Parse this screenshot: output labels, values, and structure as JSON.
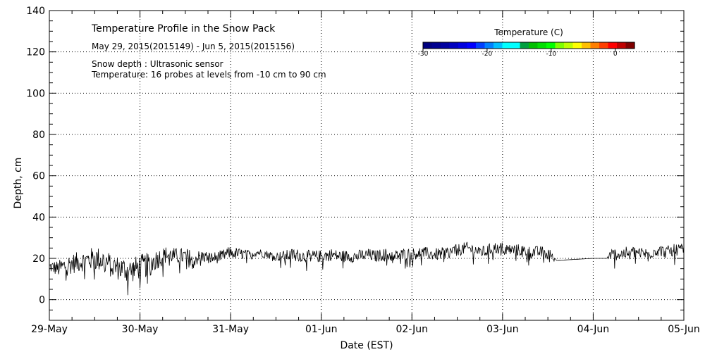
{
  "chart_data": {
    "type": "line",
    "annotations": {
      "title": "Temperature Profile in the Snow Pack",
      "date_range": "May 29, 2015(2015149) - Jun  5, 2015(2015156)",
      "snow_depth_note": "Snow depth : Ultrasonic sensor",
      "temperature_note": "Temperature: 16 probes at levels from -10 cm to 90 cm"
    },
    "xlabel": "Date (EST)",
    "ylabel": "Depth, cm",
    "ylim": [
      -10,
      140
    ],
    "xlim": [
      0,
      7
    ],
    "x_ticks": [
      {
        "value": 0,
        "label": "29-May"
      },
      {
        "value": 1,
        "label": "30-May"
      },
      {
        "value": 2,
        "label": "31-May"
      },
      {
        "value": 3,
        "label": "01-Jun"
      },
      {
        "value": 4,
        "label": "02-Jun"
      },
      {
        "value": 5,
        "label": "03-Jun"
      },
      {
        "value": 6,
        "label": "04-Jun"
      },
      {
        "value": 7,
        "label": "05-Jun"
      }
    ],
    "y_ticks": [
      0,
      20,
      40,
      60,
      80,
      100,
      120,
      140
    ],
    "grid": true,
    "colorbar": {
      "title": "Temperature (C)",
      "range": [
        -30,
        3
      ],
      "tick_values": [
        -30,
        -20,
        -10,
        0
      ],
      "tick_labels": [
        "-30",
        "-20",
        "-10",
        "0"
      ],
      "colors": [
        "#00007f",
        "#00008f",
        "#00009f",
        "#0000bf",
        "#0000df",
        "#0000ff",
        "#0040ff",
        "#0080ff",
        "#00bfff",
        "#00ffff",
        "#00ffff",
        "#009f3f",
        "#00bf00",
        "#00df00",
        "#00ff00",
        "#7fff00",
        "#bfff00",
        "#ffff00",
        "#ffbf00",
        "#ff7f00",
        "#ff3f00",
        "#ff0000",
        "#bf0000",
        "#7f0000"
      ]
    },
    "series": [
      {
        "name": "Snow depth",
        "x": [
          0,
          0.1,
          0.2,
          0.3,
          0.4,
          0.5,
          0.6,
          0.7,
          0.8,
          0.9,
          1.0,
          1.1,
          1.2,
          1.3,
          1.4,
          1.5,
          1.6,
          1.7,
          1.8,
          1.9,
          2.0,
          2.1,
          2.2,
          2.3,
          2.4,
          2.5,
          2.6,
          2.7,
          2.8,
          2.9,
          3.0,
          3.1,
          3.2,
          3.3,
          3.4,
          3.5,
          3.6,
          3.7,
          3.8,
          3.9,
          4.0,
          4.1,
          4.2,
          4.3,
          4.4,
          4.5,
          4.6,
          4.7,
          4.8,
          4.9,
          5.0,
          5.1,
          5.2,
          5.3,
          5.4,
          5.5,
          5.6,
          6.0,
          6.15,
          6.2,
          6.3,
          6.4,
          6.5,
          6.6,
          6.7,
          6.8,
          6.9,
          7.0
        ],
        "y": [
          16,
          15,
          17,
          18,
          19,
          20,
          19,
          16,
          15,
          14,
          16,
          17,
          20,
          22,
          21,
          21,
          20,
          21,
          20,
          21,
          23,
          22,
          22,
          23,
          22,
          21,
          21,
          22,
          21,
          21,
          21,
          22,
          21,
          21,
          21,
          22,
          21,
          22,
          21,
          22,
          22,
          23,
          22,
          22,
          23,
          24,
          25,
          24,
          23,
          25,
          25,
          24,
          24,
          23,
          23,
          23,
          19,
          20,
          20,
          22,
          22,
          23,
          23,
          22,
          24,
          23,
          24,
          25
        ],
        "noise_amplitude": [
          3,
          4,
          5,
          5,
          5,
          6,
          6,
          6,
          6,
          6,
          6,
          6,
          5,
          4,
          4,
          4,
          4,
          3,
          3,
          3,
          3,
          3,
          2,
          2,
          2,
          2,
          3,
          3,
          3,
          3,
          3,
          3,
          3,
          3,
          3,
          3,
          3,
          3,
          3,
          3,
          3,
          3,
          3,
          3,
          3,
          3,
          3,
          3,
          3,
          3,
          3,
          3,
          3,
          3,
          3,
          3,
          0,
          0,
          0,
          3,
          3,
          3,
          3,
          3,
          3,
          3,
          3,
          2
        ]
      }
    ]
  }
}
